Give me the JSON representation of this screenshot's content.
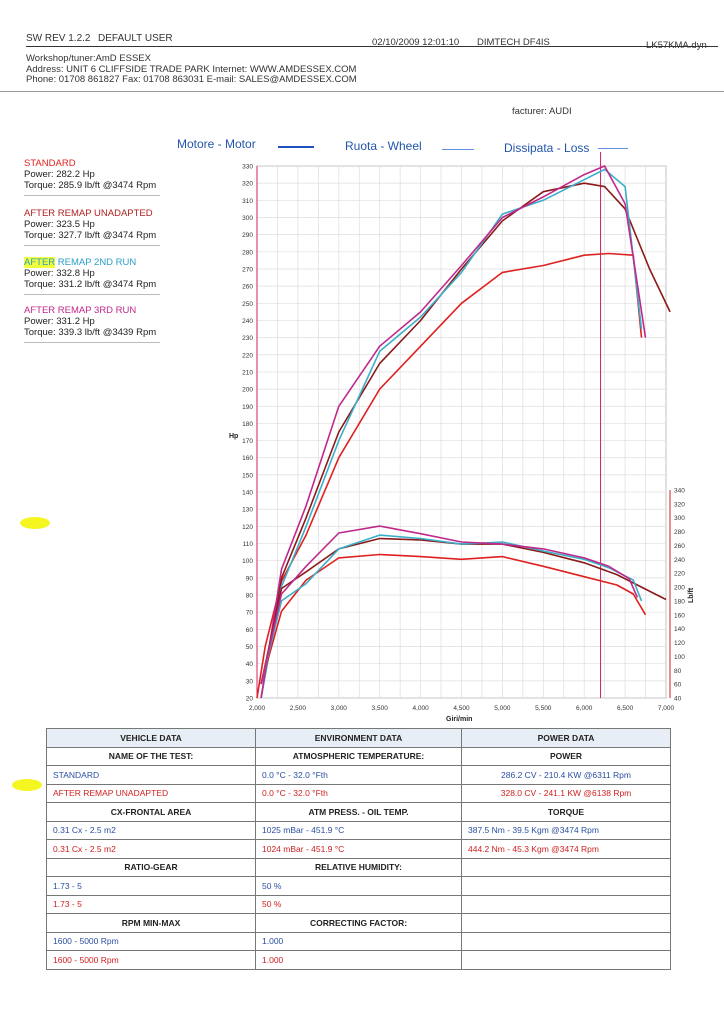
{
  "header": {
    "sw_rev": "SW REV 1.2.2",
    "user": "DEFAULT USER",
    "datetime": "02/10/2009 12:01:10",
    "device": "DIMTECH DF4IS",
    "file": "LK57KMA.dyn",
    "workshop": "Workshop/tuner:AmD ESSEX",
    "address": "Address: UNIT 6 CLIFFSIDE TRADE PARK Internet: WWW.AMDESSEX.COM",
    "phone": "Phone: 01708 861827 Fax: 01708 863031 E-mail: SALES@AMDESSEX.COM",
    "manufacturer": "facturer: AUDI"
  },
  "legend": {
    "motor": "Motore - Motor",
    "wheel": "Ruota - Wheel",
    "loss": "Dissipata - Loss"
  },
  "runs": [
    {
      "title": "STANDARD",
      "power": "Power: 282.2 Hp",
      "torque": "Torque: 285.9 lb/ft @3474 Rpm",
      "color": "#e02020"
    },
    {
      "title": "AFTER REMAP UNADAPTED",
      "power": "Power: 323.5 Hp",
      "torque": "Torque: 327.7 lb/ft @3474 Rpm",
      "color": "#9b1c1c"
    },
    {
      "title_a": "AFTER",
      "title_b": " REMAP 2ND RUN",
      "power": "Power: 332.8 Hp",
      "torque": "Torque: 331.2 lb/ft @3474 Rpm",
      "color": "#2a9ec8"
    },
    {
      "title": "AFTER REMAP 3RD RUN",
      "power": "Power: 331.2 Hp",
      "torque": "Torque: 339.3 lb/ft @3439 Rpm",
      "color": "#c0288c"
    }
  ],
  "chart_data": {
    "type": "line",
    "xlabel": "Giri/min",
    "ylabel": "Hp",
    "y2label": "Lb/ft",
    "xlim": [
      2000,
      7000
    ],
    "ylim": [
      20,
      330
    ],
    "y2lim": [
      40,
      340
    ],
    "x_ticks": [
      "2,000",
      "2,500",
      "3,000",
      "3,500",
      "4,000",
      "4,500",
      "5,000",
      "5,500",
      "6,000",
      "6,500",
      "7,000"
    ],
    "y_ticks": [
      "20",
      "30",
      "40",
      "50",
      "60",
      "70",
      "80",
      "90",
      "100",
      "110",
      "120",
      "130",
      "140",
      "150",
      "160",
      "170",
      "180",
      "190",
      "200",
      "210",
      "220",
      "230",
      "240",
      "250",
      "260",
      "270",
      "280",
      "290",
      "300",
      "310",
      "320",
      "330"
    ],
    "y2_ticks": [
      "40",
      "60",
      "80",
      "100",
      "120",
      "140",
      "160",
      "180",
      "200",
      "220",
      "240",
      "260",
      "280",
      "300",
      "320",
      "340"
    ],
    "marker_rpm": 6200,
    "series": [
      {
        "run": 0,
        "kind": "power",
        "color": "#e02020",
        "x": [
          2000,
          2100,
          2300,
          2600,
          3000,
          3500,
          4000,
          4500,
          5000,
          5500,
          6000,
          6300,
          6600,
          6700
        ],
        "y": [
          20,
          50,
          88,
          115,
          160,
          200,
          225,
          250,
          268,
          272,
          278,
          279,
          278,
          230
        ]
      },
      {
        "run": 1,
        "kind": "power",
        "color": "#8b1a1a",
        "x": [
          2050,
          2300,
          2600,
          3000,
          3500,
          4000,
          4500,
          5000,
          5500,
          6000,
          6250,
          6500,
          6800,
          7050
        ],
        "y": [
          20,
          90,
          125,
          175,
          215,
          240,
          270,
          298,
          315,
          320,
          318,
          305,
          270,
          245
        ]
      },
      {
        "run": 2,
        "kind": "power",
        "color": "#3ab0c8",
        "x": [
          2050,
          2300,
          2600,
          3000,
          3500,
          4000,
          4500,
          5000,
          5500,
          6000,
          6250,
          6500,
          6700
        ],
        "y": [
          20,
          85,
          120,
          170,
          222,
          242,
          268,
          302,
          310,
          322,
          328,
          318,
          235
        ]
      },
      {
        "run": 3,
        "kind": "power",
        "color": "#c0288c",
        "x": [
          2050,
          2300,
          2600,
          3000,
          3500,
          4000,
          4500,
          5000,
          5500,
          6000,
          6250,
          6500,
          6750
        ],
        "y": [
          20,
          95,
          132,
          190,
          225,
          245,
          272,
          300,
          312,
          325,
          330,
          308,
          230
        ]
      },
      {
        "run": 0,
        "kind": "torque",
        "color": "#e02020",
        "x": [
          2050,
          2300,
          2600,
          3000,
          3500,
          4000,
          4500,
          5000,
          5500,
          6000,
          6400,
          6600,
          6750
        ],
        "y": [
          60,
          165,
          210,
          242,
          247,
          244,
          240,
          244,
          230,
          215,
          203,
          190,
          160
        ]
      },
      {
        "run": 1,
        "kind": "torque",
        "color": "#8b1a1a",
        "x": [
          2050,
          2300,
          2600,
          3000,
          3500,
          4000,
          4500,
          5000,
          5500,
          6000,
          6400,
          6700,
          7000
        ],
        "y": [
          60,
          198,
          222,
          255,
          270,
          268,
          262,
          262,
          250,
          235,
          218,
          200,
          182
        ]
      },
      {
        "run": 2,
        "kind": "torque",
        "color": "#3ab0c8",
        "x": [
          2050,
          2300,
          2600,
          3000,
          3500,
          4000,
          4500,
          5000,
          5500,
          6000,
          6300,
          6600,
          6700
        ],
        "y": [
          60,
          180,
          205,
          255,
          275,
          270,
          262,
          265,
          252,
          240,
          228,
          210,
          180
        ]
      },
      {
        "run": 3,
        "kind": "torque",
        "color": "#c0288c",
        "x": [
          2050,
          2300,
          2600,
          3000,
          3500,
          4000,
          4500,
          5000,
          5500,
          6000,
          6300,
          6550,
          6650
        ],
        "y": [
          60,
          190,
          230,
          278,
          288,
          277,
          265,
          262,
          255,
          242,
          230,
          212,
          185
        ]
      }
    ]
  },
  "table": {
    "headers": {
      "vehicle": "VEHICLE DATA",
      "environment": "ENVIRONMENT DATA",
      "power": "POWER DATA"
    },
    "name_label": "NAME OF THE TEST:",
    "atm_temp_label": "ATMOSPHERIC TEMPERATURE:",
    "power_label": "POWER",
    "names": [
      "STANDARD",
      "AFTER REMAP UNADAPTED"
    ],
    "temps": [
      "0.0 °C - 32.0 °Fth",
      "0.0 °C - 32.0 °Fth"
    ],
    "powers": [
      "286.2 CV - 210.4 KW  @6311 Rpm",
      "328.0 CV - 241.1 KW  @6138 Rpm"
    ],
    "cx_label": "CX-FRONTAL AREA",
    "atm_press_label": "ATM PRESS. - OIL TEMP.",
    "torque_label": "TORQUE",
    "cx": [
      "0.31 Cx - 2.5 m2",
      "0.31 Cx - 2.5 m2"
    ],
    "press": [
      "1025 mBar - 451.9 °C",
      "1024 mBar - 451.9 °C"
    ],
    "torques": [
      "387.5 Nm - 39.5 Kgm  @3474 Rpm",
      "444.2 Nm - 45.3 Kgm  @3474 Rpm"
    ],
    "ratio_label": "RATIO-GEAR",
    "humidity_label": "RELATIVE HUMIDITY:",
    "ratios": [
      "1.73 - 5",
      "1.73 - 5"
    ],
    "humidity": [
      "50 %",
      "50 %"
    ],
    "rpm_label": "RPM MIN-MAX",
    "correcting_label": "CORRECTING FACTOR:",
    "rpms": [
      "1600 - 5000 Rpm",
      "1600 - 5000 Rpm"
    ],
    "factors": [
      "1.000",
      "1.000"
    ]
  }
}
